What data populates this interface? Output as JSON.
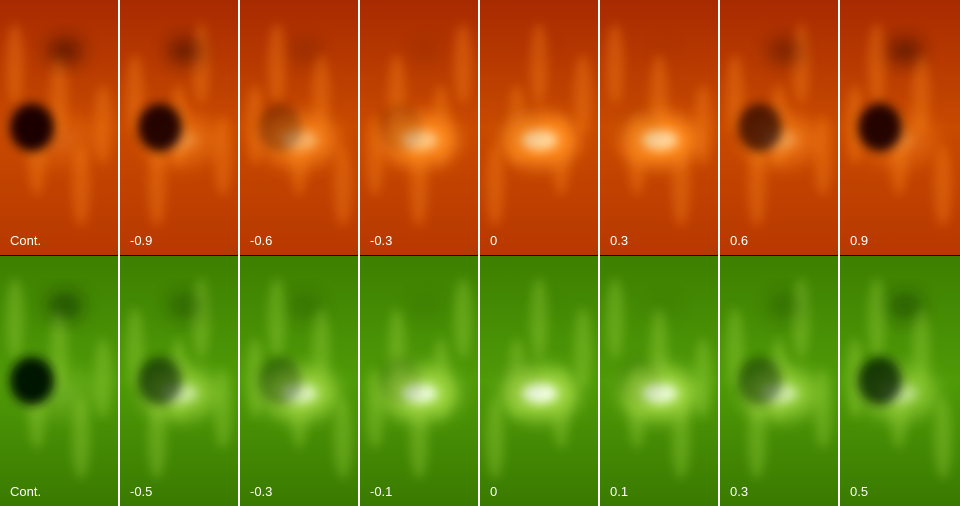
{
  "rows": [
    {
      "panels": [
        {
          "label": "Cont."
        },
        {
          "label": "-0.9"
        },
        {
          "label": "-0.6"
        },
        {
          "label": "-0.3"
        },
        {
          "label": "0"
        },
        {
          "label": "0.3"
        },
        {
          "label": "0.6"
        },
        {
          "label": "0.9"
        }
      ]
    },
    {
      "panels": [
        {
          "label": "Cont."
        },
        {
          "label": "-0.5"
        },
        {
          "label": "-0.3"
        },
        {
          "label": "-0.1"
        },
        {
          "label": "0"
        },
        {
          "label": "0.1"
        },
        {
          "label": "0.3"
        },
        {
          "label": "0.5"
        }
      ]
    }
  ]
}
